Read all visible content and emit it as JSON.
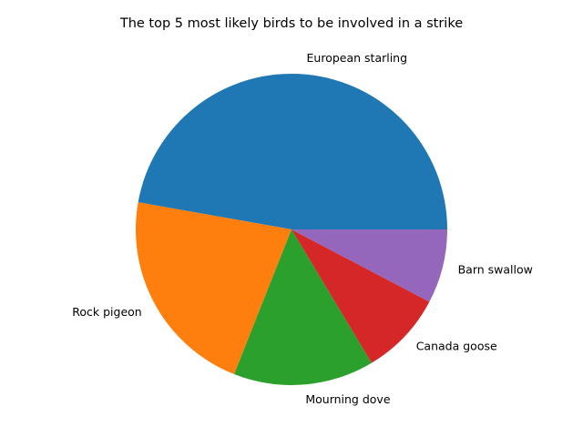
{
  "chart_data": {
    "type": "pie",
    "title": "The top 5 most likely birds to be involved in a strike",
    "labels": [
      "European starling",
      "Rock pigeon",
      "Mourning dove",
      "Canada goose",
      "Barn swallow"
    ],
    "values": [
      47.2,
      21.8,
      14.6,
      8.7,
      7.7
    ],
    "colors": [
      "#1f77b4",
      "#ff7f0e",
      "#2ca02c",
      "#d62728",
      "#9467bd"
    ],
    "start_angle_deg": 0,
    "direction": "counterclockwise"
  }
}
